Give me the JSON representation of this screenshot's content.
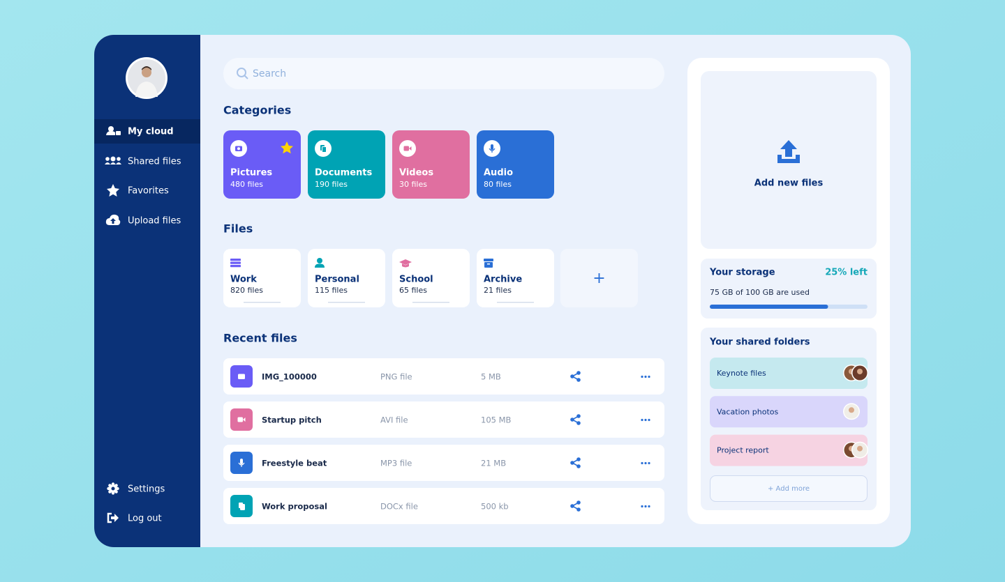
{
  "nav": {
    "items": [
      "My cloud",
      "Shared files",
      "Favorites",
      "Upload files"
    ],
    "bottom": [
      "Settings",
      "Log out"
    ]
  },
  "search": {
    "placeholder": "Search"
  },
  "categories": {
    "title": "Categories",
    "items": [
      {
        "name": "Pictures",
        "count": "480 files"
      },
      {
        "name": "Documents",
        "count": "190 files"
      },
      {
        "name": "Videos",
        "count": "30 files"
      },
      {
        "name": "Audio",
        "count": "80 files"
      }
    ]
  },
  "files": {
    "title": "Files",
    "items": [
      {
        "name": "Work",
        "count": "820 files"
      },
      {
        "name": "Personal",
        "count": "115 files"
      },
      {
        "name": "School",
        "count": "65 files"
      },
      {
        "name": "Archive",
        "count": "21 files"
      }
    ],
    "add": "+"
  },
  "recent": {
    "title": "Recent files",
    "rows": [
      {
        "name": "IMG_100000",
        "type": "PNG file",
        "size": "5 MB"
      },
      {
        "name": "Startup pitch",
        "type": "AVI file",
        "size": "105 MB"
      },
      {
        "name": "Freestyle beat",
        "type": "MP3 file",
        "size": "21 MB"
      },
      {
        "name": "Work proposal",
        "type": "DOCx file",
        "size": "500 kb"
      }
    ]
  },
  "upload": {
    "label": "Add new files"
  },
  "storage": {
    "title": "Your storage",
    "left": "25% left",
    "used_text": "75 GB of 100 GB are used",
    "used": 75,
    "total": 100
  },
  "shared": {
    "title": "Your shared folders",
    "items": [
      "Keynote files",
      "Vacation photos",
      "Project report"
    ],
    "add": "+ Add more"
  }
}
